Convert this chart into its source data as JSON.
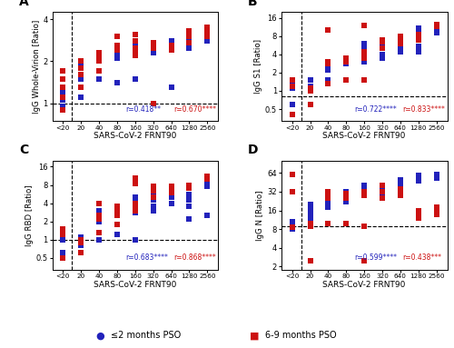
{
  "panels": [
    {
      "label": "A",
      "ylabel": "IgG Whole-Virion [Ratio]",
      "xlabel": "SARS-CoV-2 FRNT90",
      "hline": 1.0,
      "ylim": [
        0.75,
        4.5
      ],
      "yticks": [
        1,
        2,
        4
      ],
      "ytick_labels": [
        "1",
        "2",
        "4"
      ],
      "corr_blue": "r=0.418",
      "stars_blue": "**",
      "corr_red": "r=0.670",
      "stars_red": "****"
    },
    {
      "label": "B",
      "ylabel": "IgG S1 [Ratio]",
      "xlabel": "SARS-CoV-2 FRNT90",
      "hline": 0.8,
      "ylim": [
        0.32,
        20
      ],
      "yticks": [
        0.5,
        1,
        2,
        4,
        8,
        16
      ],
      "ytick_labels": [
        "0.5",
        "1",
        "2",
        "4",
        "8",
        "16"
      ],
      "corr_blue": "r=0.722",
      "stars_blue": "****",
      "corr_red": "r=0.833",
      "stars_red": "****"
    },
    {
      "label": "C",
      "ylabel": "IgG RBD [Ratio]",
      "xlabel": "SARS-CoV-2 FRNT90",
      "hline": 1.0,
      "ylim": [
        0.32,
        20
      ],
      "yticks": [
        0.5,
        1,
        2,
        4,
        8,
        16
      ],
      "ytick_labels": [
        "0.5",
        "1",
        "2",
        "4",
        "8",
        "16"
      ],
      "corr_blue": "r=0.683",
      "stars_blue": "****",
      "corr_red": "r=0.868",
      "stars_red": "****"
    },
    {
      "label": "D",
      "ylabel": "IgG N [Ratio]",
      "xlabel": "SARS-CoV-2 FRNT90",
      "hline": 9.0,
      "ylim": [
        1.8,
        100
      ],
      "yticks": [
        2,
        4,
        8,
        16,
        32,
        64
      ],
      "ytick_labels": [
        "2",
        "4",
        "8",
        "16",
        "32",
        "64"
      ],
      "corr_blue": "r=0.599",
      "stars_blue": "****",
      "corr_red": "r=0.438",
      "stars_red": "***"
    }
  ],
  "blue_color": "#2222BB",
  "red_color": "#CC1111",
  "legend_blue": "≤2 months PSO",
  "legend_red": "6-9 months PSO",
  "marker_size": 14,
  "vline_x": 0.5,
  "xlim": [
    -0.6,
    8.6
  ],
  "xtick_pos": [
    0,
    1,
    2,
    3,
    4,
    5,
    6,
    7,
    8
  ],
  "xtick_labels": [
    "<20",
    "20",
    "40",
    "80",
    "160",
    "320",
    "640",
    "1280",
    "2560"
  ],
  "xlabel": "SARS-CoV-2 FRNT90",
  "background_color": "#ffffff",
  "A_blue_x": [
    0,
    0,
    0,
    0,
    0,
    1,
    1,
    1,
    1,
    1,
    2,
    2,
    2,
    2,
    3,
    3,
    3,
    3,
    3,
    4,
    4,
    4,
    4,
    4,
    5,
    5,
    5,
    5,
    6,
    6,
    6,
    6,
    6,
    7,
    7,
    7,
    7,
    8,
    8,
    8
  ],
  "A_blue_y": [
    1.2,
    1.1,
    1.05,
    0.95,
    1.15,
    2.0,
    1.5,
    1.9,
    1.3,
    1.1,
    2.2,
    2.1,
    2.3,
    1.5,
    2.2,
    2.1,
    2.3,
    2.4,
    1.4,
    2.5,
    2.4,
    2.6,
    2.3,
    1.5,
    2.3,
    2.4,
    2.5,
    2.6,
    2.5,
    2.6,
    2.7,
    2.8,
    1.3,
    3.0,
    2.8,
    2.9,
    2.5,
    2.8,
    2.9,
    3.0
  ],
  "A_red_x": [
    0,
    0,
    0,
    0,
    0,
    1,
    1,
    1,
    1,
    2,
    2,
    2,
    2,
    3,
    3,
    3,
    3,
    4,
    4,
    4,
    4,
    4,
    5,
    5,
    5,
    5,
    6,
    6,
    6,
    7,
    7,
    7,
    8,
    8,
    8
  ],
  "A_red_y": [
    1.5,
    1.3,
    1.7,
    1.1,
    0.9,
    2.0,
    1.8,
    1.3,
    1.6,
    2.2,
    2.3,
    2.0,
    1.7,
    2.5,
    2.6,
    2.4,
    3.0,
    2.8,
    2.5,
    2.4,
    3.1,
    2.2,
    2.7,
    2.6,
    2.5,
    1.0,
    2.6,
    2.5,
    2.4,
    3.0,
    3.3,
    2.7,
    3.5,
    3.3,
    3.0
  ],
  "B_blue_x": [
    0,
    0,
    0,
    0,
    1,
    1,
    1,
    2,
    2,
    2,
    2,
    2,
    3,
    3,
    3,
    3,
    4,
    4,
    4,
    4,
    4,
    5,
    5,
    5,
    5,
    5,
    5,
    6,
    6,
    6,
    6,
    7,
    7,
    7,
    7,
    8,
    8,
    8,
    8
  ],
  "B_blue_y": [
    1.4,
    1.2,
    0.6,
    1.1,
    1.5,
    1.2,
    1.1,
    3.0,
    2.8,
    2.5,
    1.5,
    2.2,
    3.5,
    3.0,
    2.8,
    1.5,
    5.0,
    6.0,
    4.5,
    3.0,
    1.5,
    6.0,
    5.5,
    5.0,
    7.0,
    4.0,
    3.5,
    7.0,
    6.5,
    5.5,
    4.5,
    11.0,
    10.5,
    5.5,
    4.5,
    12.0,
    11.5,
    10.0,
    9.0
  ],
  "B_red_x": [
    0,
    0,
    0,
    1,
    1,
    1,
    2,
    2,
    2,
    2,
    3,
    3,
    3,
    3,
    4,
    4,
    4,
    4,
    4,
    5,
    5,
    5,
    6,
    6,
    6,
    7,
    7,
    7,
    8,
    8,
    8
  ],
  "B_red_y": [
    1.5,
    1.2,
    0.4,
    1.1,
    1.0,
    0.6,
    10.0,
    3.0,
    2.8,
    1.3,
    3.5,
    3.2,
    3.0,
    1.5,
    4.5,
    4.0,
    3.5,
    1.5,
    12.0,
    7.0,
    6.5,
    5.0,
    8.0,
    7.5,
    6.0,
    8.5,
    8.0,
    7.0,
    12.5,
    12.0,
    11.5
  ],
  "C_blue_x": [
    0,
    0,
    0,
    0,
    1,
    1,
    1,
    2,
    2,
    2,
    2,
    2,
    3,
    3,
    3,
    3,
    4,
    4,
    4,
    4,
    4,
    5,
    5,
    5,
    5,
    5,
    5,
    6,
    6,
    6,
    6,
    7,
    7,
    7,
    7,
    8,
    8,
    8,
    8
  ],
  "C_blue_y": [
    1.3,
    1.1,
    0.6,
    1.0,
    1.1,
    1.0,
    0.8,
    3.0,
    2.5,
    2.0,
    1.0,
    2.2,
    3.2,
    2.8,
    2.5,
    1.2,
    4.5,
    5.0,
    4.0,
    2.8,
    1.0,
    5.5,
    5.0,
    4.5,
    6.5,
    3.5,
    3.0,
    6.5,
    6.0,
    5.0,
    4.0,
    5.5,
    4.5,
    2.2,
    3.5,
    9.0,
    8.5,
    7.5,
    2.5
  ],
  "C_red_x": [
    0,
    0,
    0,
    1,
    1,
    1,
    2,
    2,
    2,
    2,
    3,
    3,
    3,
    3,
    4,
    4,
    4,
    4,
    4,
    5,
    5,
    5,
    6,
    6,
    6,
    7,
    7,
    7,
    8,
    8,
    8
  ],
  "C_red_y": [
    1.5,
    0.5,
    1.2,
    1.0,
    0.9,
    0.6,
    4.0,
    2.5,
    2.2,
    1.3,
    3.5,
    3.0,
    2.5,
    1.8,
    4.0,
    3.5,
    3.0,
    10.5,
    8.5,
    7.5,
    6.5,
    5.0,
    7.5,
    7.0,
    6.0,
    8.0,
    7.5,
    7.0,
    11.0,
    10.5,
    10.0
  ],
  "D_blue_x": [
    0,
    0,
    0,
    0,
    1,
    1,
    1,
    1,
    1,
    2,
    2,
    2,
    2,
    3,
    3,
    3,
    3,
    3,
    4,
    4,
    4,
    4,
    4,
    5,
    5,
    5,
    5,
    6,
    6,
    6,
    6,
    7,
    7,
    7,
    7,
    8,
    8,
    8,
    8
  ],
  "D_blue_y": [
    8.5,
    9.5,
    10.5,
    8.0,
    16.0,
    14.0,
    18.0,
    20.0,
    12.0,
    22.0,
    20.0,
    18.0,
    25.0,
    30.0,
    28.0,
    25.0,
    22.0,
    32.0,
    35.0,
    32.0,
    30.0,
    40.0,
    28.0,
    40.0,
    38.0,
    35.0,
    30.0,
    50.0,
    48.0,
    45.0,
    40.0,
    55.0,
    58.0,
    50.0,
    48.0,
    60.0,
    58.0,
    55.0,
    52.0
  ],
  "D_red_x": [
    0,
    0,
    0,
    1,
    1,
    1,
    2,
    2,
    2,
    2,
    3,
    3,
    3,
    3,
    4,
    4,
    4,
    4,
    4,
    5,
    5,
    5,
    6,
    6,
    6,
    7,
    7,
    7,
    8,
    8,
    8
  ],
  "D_red_y": [
    60.0,
    32.0,
    8.5,
    10.0,
    9.0,
    2.5,
    32.0,
    28.0,
    25.0,
    10.0,
    30.0,
    28.0,
    25.0,
    10.0,
    32.0,
    30.0,
    28.0,
    9.0,
    2.5,
    40.0,
    32.0,
    25.0,
    35.0,
    32.0,
    28.0,
    16.0,
    14.0,
    12.0,
    18.0,
    16.0,
    14.0
  ]
}
